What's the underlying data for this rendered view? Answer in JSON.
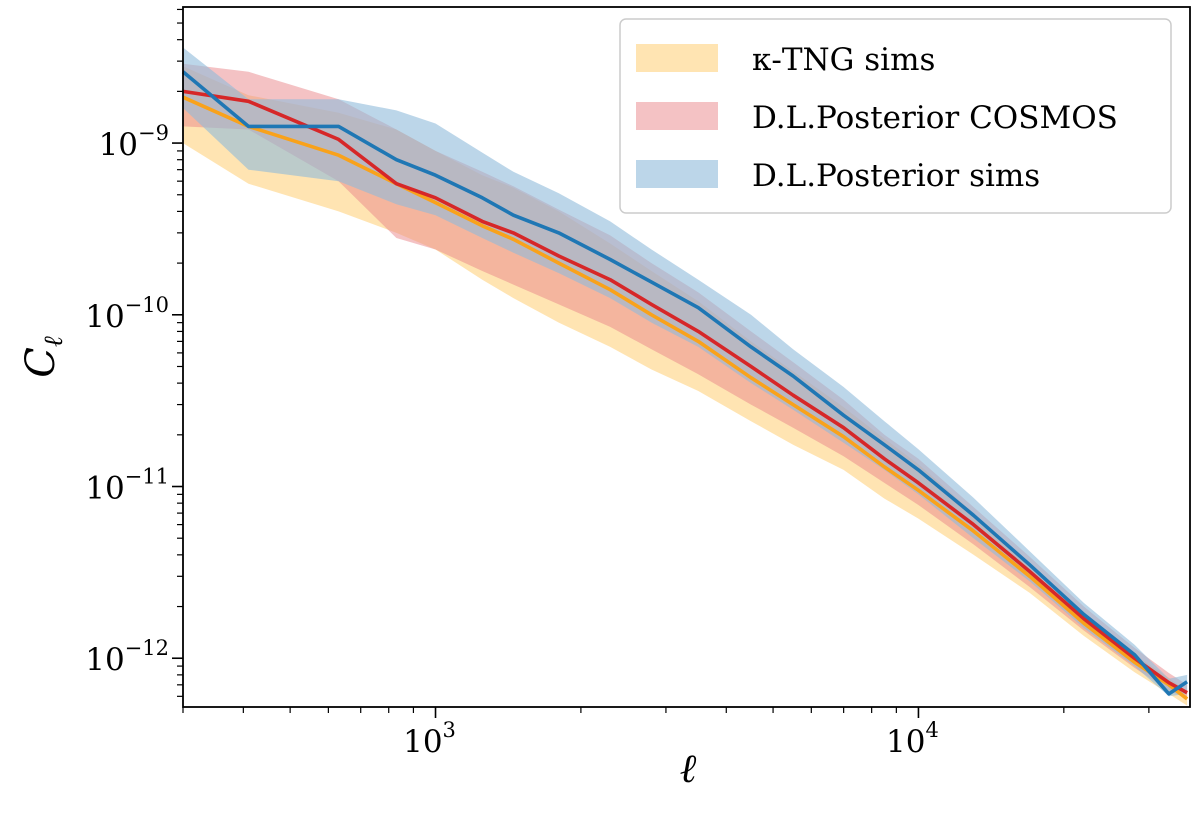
{
  "chart_data": {
    "type": "line",
    "title": "",
    "xlabel": "ℓ",
    "ylabel": "C",
    "ylabel_sub": "ℓ",
    "xscale": "log",
    "yscale": "log",
    "xlim": [
      300,
      36500
    ],
    "ylim": [
      5.2e-13,
      6.2e-09
    ],
    "grid": false,
    "legend_position": "top-right",
    "x_ticks": [
      {
        "value": 1000,
        "base": "10",
        "exp": "3"
      },
      {
        "value": 10000,
        "base": "10",
        "exp": "4"
      }
    ],
    "y_ticks": [
      {
        "value": 1e-09,
        "base": "10",
        "exp": "−9"
      },
      {
        "value": 1e-10,
        "base": "10",
        "exp": "−10"
      },
      {
        "value": 1e-11,
        "base": "10",
        "exp": "−11"
      },
      {
        "value": 1e-12,
        "base": "10",
        "exp": "−12"
      }
    ],
    "x": [
      300,
      410,
      630,
      830,
      1000,
      1250,
      1450,
      1800,
      2300,
      2800,
      3500,
      4500,
      5500,
      7000,
      8500,
      10000,
      13000,
      17000,
      22000,
      28000,
      33000,
      36000
    ],
    "series": [
      {
        "name": "κ-TNG sims",
        "color": "#f9a21b",
        "band_color": "#ffd27f",
        "band_opacity": 0.6,
        "mean": [
          1.85e-09,
          1.25e-09,
          8.5e-10,
          5.8e-10,
          4.5e-10,
          3.3e-10,
          2.75e-10,
          2e-10,
          1.4e-10,
          1e-10,
          7e-11,
          4.3e-11,
          3e-11,
          1.95e-11,
          1.3e-11,
          9.5e-12,
          5.5e-12,
          3e-12,
          1.6e-12,
          9.5e-13,
          7e-13,
          5.8e-13
        ],
        "lower": [
          1e-09,
          5.8e-10,
          4e-10,
          3e-10,
          2.4e-10,
          1.6e-10,
          1.25e-10,
          9e-11,
          6.5e-11,
          4.8e-11,
          3.6e-11,
          2.4e-11,
          1.75e-11,
          1.25e-11,
          8.5e-12,
          6.5e-12,
          4e-12,
          2.4e-12,
          1.35e-12,
          8.3e-13,
          6.2e-13,
          5.3e-13
        ],
        "upper": [
          2.8e-09,
          1.9e-09,
          1.5e-09,
          1.2e-09,
          9e-10,
          6.5e-10,
          5.5e-10,
          4e-10,
          2.6e-10,
          1.8e-10,
          1.2e-10,
          7e-11,
          4.7e-11,
          2.9e-11,
          1.9e-11,
          1.35e-11,
          7e-12,
          3.6e-12,
          1.85e-12,
          1.05e-12,
          7.7e-13,
          6.4e-13
        ]
      },
      {
        "name": "D.L.Posterior COSMOS",
        "color": "#d62728",
        "band_color": "#e9868a",
        "band_opacity": 0.5,
        "mean": [
          2e-09,
          1.75e-09,
          1.05e-09,
          5.8e-10,
          4.8e-10,
          3.5e-10,
          3e-10,
          2.2e-10,
          1.6e-10,
          1.15e-10,
          8e-11,
          5e-11,
          3.4e-11,
          2.2e-11,
          1.45e-11,
          1.05e-11,
          6e-12,
          3.2e-12,
          1.7e-12,
          1e-12,
          7.2e-13,
          6.3e-13
        ],
        "lower": [
          1.25e-09,
          1.2e-09,
          6e-10,
          2.8e-10,
          2.4e-10,
          1.8e-10,
          1.5e-10,
          1.15e-10,
          8.5e-11,
          6.3e-11,
          4.5e-11,
          3e-11,
          2.2e-11,
          1.5e-11,
          1.05e-11,
          7.8e-12,
          4.6e-12,
          2.6e-12,
          1.45e-12,
          8.8e-13,
          6.5e-13,
          5.8e-13
        ],
        "upper": [
          2.9e-09,
          2.6e-09,
          1.8e-09,
          1.2e-09,
          9e-10,
          6.8e-10,
          5.6e-10,
          4.1e-10,
          2.9e-10,
          2e-10,
          1.35e-10,
          8e-11,
          5.3e-11,
          3.2e-11,
          2e-11,
          1.45e-11,
          7.6e-12,
          3.9e-12,
          2e-12,
          1.15e-12,
          8.2e-13,
          7e-13
        ]
      },
      {
        "name": "D.L.Posterior sims",
        "color": "#1f77b4",
        "band_color": "#8fbbda",
        "band_opacity": 0.6,
        "mean": [
          2.6e-09,
          1.25e-09,
          1.25e-09,
          8e-10,
          6.5e-10,
          4.8e-10,
          3.8e-10,
          3e-10,
          2.1e-10,
          1.55e-10,
          1.1e-10,
          6.5e-11,
          4.4e-11,
          2.6e-11,
          1.75e-11,
          1.25e-11,
          6.8e-12,
          3.5e-12,
          1.8e-12,
          1.05e-12,
          6.2e-13,
          7.3e-13
        ],
        "lower": [
          1.6e-09,
          7e-10,
          6e-10,
          4.4e-10,
          3.8e-10,
          2.8e-10,
          2.3e-10,
          1.75e-10,
          1.25e-10,
          9e-11,
          6.5e-11,
          4e-11,
          2.8e-11,
          1.8e-11,
          1.25e-11,
          9e-12,
          5e-12,
          2.8e-12,
          1.5e-12,
          9e-13,
          6e-13,
          6.2e-13
        ],
        "upper": [
          3.6e-09,
          1.8e-09,
          1.8e-09,
          1.55e-09,
          1.3e-09,
          8.8e-10,
          6.8e-10,
          5.1e-10,
          3.5e-10,
          2.4e-10,
          1.6e-10,
          1e-10,
          6.3e-11,
          3.8e-11,
          2.4e-11,
          1.65e-11,
          8.6e-12,
          4.2e-12,
          2.1e-12,
          1.2e-12,
          7.6e-13,
          8e-13
        ]
      }
    ]
  }
}
